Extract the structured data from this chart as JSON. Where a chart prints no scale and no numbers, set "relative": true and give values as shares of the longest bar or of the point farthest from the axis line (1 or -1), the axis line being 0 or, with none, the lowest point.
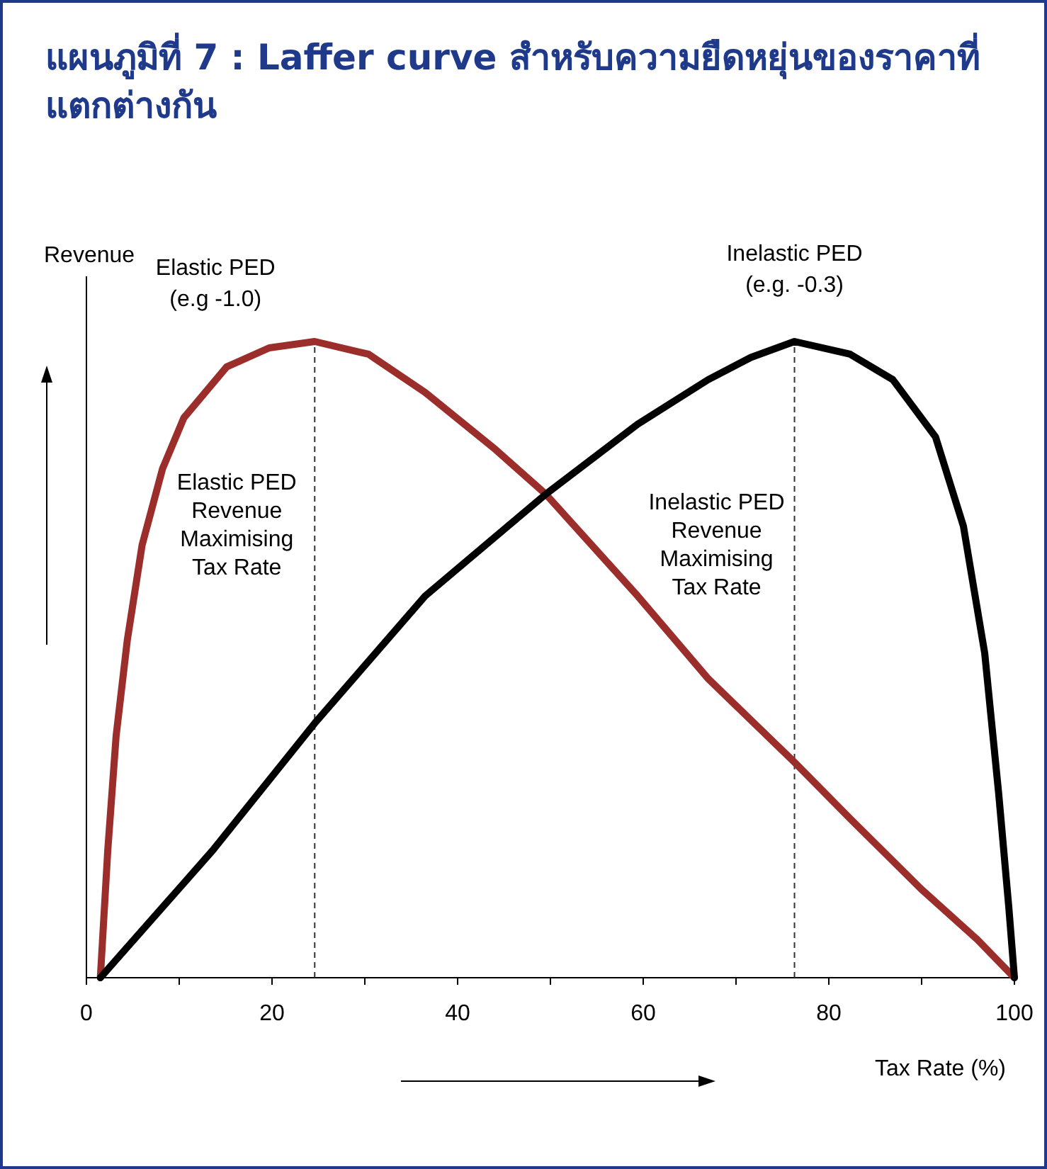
{
  "chart_data": {
    "type": "line",
    "title": "แผนภูมิที่ 7 : Laffer curve สำหรับความยืดหยุ่นของราคาที่แตกต่างกัน",
    "xlabel": "Tax Rate (%)",
    "ylabel": "Revenue",
    "relative": true,
    "xlim": [
      0,
      100
    ],
    "xticks": [
      0,
      {
        "value": 10,
        "label": null
      },
      20,
      {
        "value": 30,
        "label": null
      },
      40,
      {
        "value": 50,
        "label": null
      },
      60,
      {
        "value": 70,
        "label": null
      },
      80,
      {
        "value": 90,
        "label": null
      },
      100
    ],
    "series": [
      {
        "name": "Elastic PED (e.g -1.0)",
        "color": "#9b2d2a",
        "x": [
          1.5,
          2.3,
          3.2,
          4.4,
          6.0,
          8.2,
          10.5,
          15.1,
          19.7,
          24.6,
          30.4,
          36.5,
          44.1,
          49.5,
          59.4,
          67.0,
          76.2,
          82.3,
          89.9,
          96.0,
          100
        ],
        "values": [
          0,
          0.2,
          0.38,
          0.53,
          0.68,
          0.8,
          0.88,
          0.96,
          0.99,
          1.0,
          0.98,
          0.92,
          0.83,
          0.76,
          0.6,
          0.47,
          0.34,
          0.25,
          0.14,
          0.06,
          0
        ]
      },
      {
        "name": "Inelastic PED (e.g. -0.3)",
        "color": "#000000",
        "x": [
          1.5,
          13.6,
          24.6,
          36.5,
          49.5,
          59.4,
          67.0,
          71.6,
          76.3,
          82.3,
          86.9,
          91.5,
          94.5,
          96.8,
          98.3,
          99.4,
          100
        ],
        "values": [
          0,
          0.2,
          0.4,
          0.6,
          0.76,
          0.87,
          0.94,
          0.975,
          1.0,
          0.98,
          0.94,
          0.85,
          0.71,
          0.51,
          0.29,
          0.11,
          0
        ]
      }
    ],
    "ref_lines": [
      {
        "axis": "x",
        "value": 24.6,
        "label": "Elastic PED Revenue Maximising Tax Rate",
        "color": "#333333",
        "line_style": "dashed"
      },
      {
        "axis": "x",
        "value": 76.3,
        "label": "Inelastic PED Revenue Maximising Tax Rate",
        "color": "#333333",
        "line_style": "dashed"
      }
    ]
  }
}
